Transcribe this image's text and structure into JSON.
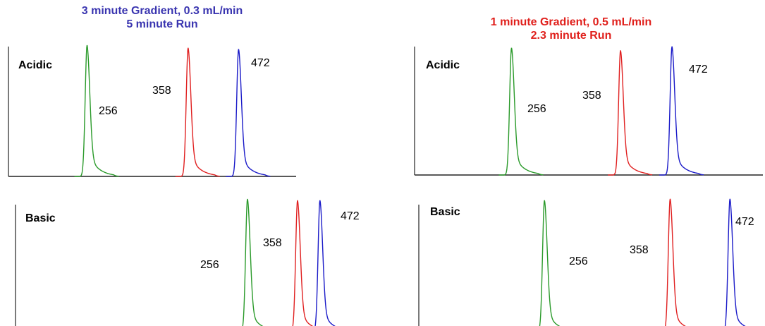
{
  "header": {
    "left": {
      "line1": "3 minute Gradient, 0.3 mL/min",
      "line2": "5 minute Run",
      "color": "#3a35b0"
    },
    "right": {
      "line1": "1 minute Gradient, 0.5 mL/min",
      "line2": "2.3 minute Run",
      "color": "#e0201c"
    }
  },
  "series_colors": {
    "256": "#2a9a2a",
    "358": "#e02020",
    "472": "#1a1ac8"
  },
  "chart_data": [
    {
      "type": "line",
      "condition": "3 minute Gradient, 0.3 mL/min, 5 minute Run",
      "panel_label": "Acidic",
      "peaks": [
        {
          "label": "256",
          "color": "#2a9a2a",
          "retention": 1.12,
          "height": 1.0
        },
        {
          "label": "358",
          "color": "#e02020",
          "retention": 2.56,
          "height": 0.98
        },
        {
          "label": "472",
          "color": "#1a1ac8",
          "retention": 3.28,
          "height": 0.97
        }
      ],
      "xlim": [
        0,
        4.1
      ]
    },
    {
      "type": "line",
      "condition": "3 minute Gradient, 0.3 mL/min, 5 minute Run",
      "panel_label": "Basic",
      "peaks": [
        {
          "label": "256",
          "color": "#2a9a2a",
          "retention": 3.52,
          "height": 1.0
        },
        {
          "label": "358",
          "color": "#e02020",
          "retention": 4.28,
          "height": 0.99
        },
        {
          "label": "472",
          "color": "#1a1ac8",
          "retention": 4.62,
          "height": 0.99
        }
      ],
      "xlim": [
        0,
        5.5
      ]
    },
    {
      "type": "line",
      "condition": "1 minute Gradient, 0.5 mL/min, 2.3 minute Run",
      "panel_label": "Acidic",
      "peaks": [
        {
          "label": "256",
          "color": "#2a9a2a",
          "retention": 0.64,
          "height": 0.98
        },
        {
          "label": "358",
          "color": "#e02020",
          "retention": 1.36,
          "height": 0.96
        },
        {
          "label": "472",
          "color": "#1a1ac8",
          "retention": 1.7,
          "height": 0.99
        }
      ],
      "xlim": [
        0,
        2.3
      ]
    },
    {
      "type": "line",
      "condition": "1 minute Gradient, 0.5 mL/min, 2.3 minute Run",
      "panel_label": "Basic",
      "peaks": [
        {
          "label": "256",
          "color": "#2a9a2a",
          "retention": 0.84,
          "height": 0.97
        },
        {
          "label": "358",
          "color": "#e02020",
          "retention": 1.68,
          "height": 0.98
        },
        {
          "label": "472",
          "color": "#1a1ac8",
          "retention": 2.08,
          "height": 0.98
        }
      ],
      "xlim": [
        0,
        2.3
      ]
    }
  ]
}
